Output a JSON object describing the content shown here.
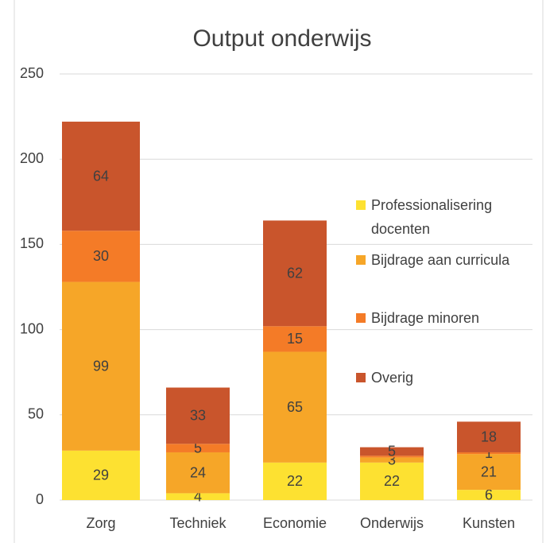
{
  "chart_data": {
    "type": "stacked_bar",
    "title": "Output onderwijs",
    "categories": [
      "Zorg",
      "Techniek",
      "Economie",
      "Onderwijs",
      "Kunsten"
    ],
    "series": [
      {
        "name": "Professionalisering docenten",
        "color": "#fde131",
        "values": [
          29,
          4,
          22,
          22,
          6
        ]
      },
      {
        "name": "Bijdrage aan curricula",
        "color": "#f6a628",
        "values": [
          99,
          24,
          65,
          3,
          21
        ]
      },
      {
        "name": "Bijdrage minoren",
        "color": "#f47b27",
        "values": [
          30,
          5,
          15,
          1,
          1
        ],
        "value_labels": [
          "30",
          "5",
          "15",
          null,
          "1"
        ]
      },
      {
        "name": "Overig",
        "color": "#c9552c",
        "values": [
          64,
          33,
          62,
          5,
          18
        ]
      }
    ],
    "ylim": [
      0,
      250
    ],
    "yticks": [
      0,
      50,
      100,
      150,
      200,
      250
    ],
    "grid": true,
    "legend": "right"
  }
}
